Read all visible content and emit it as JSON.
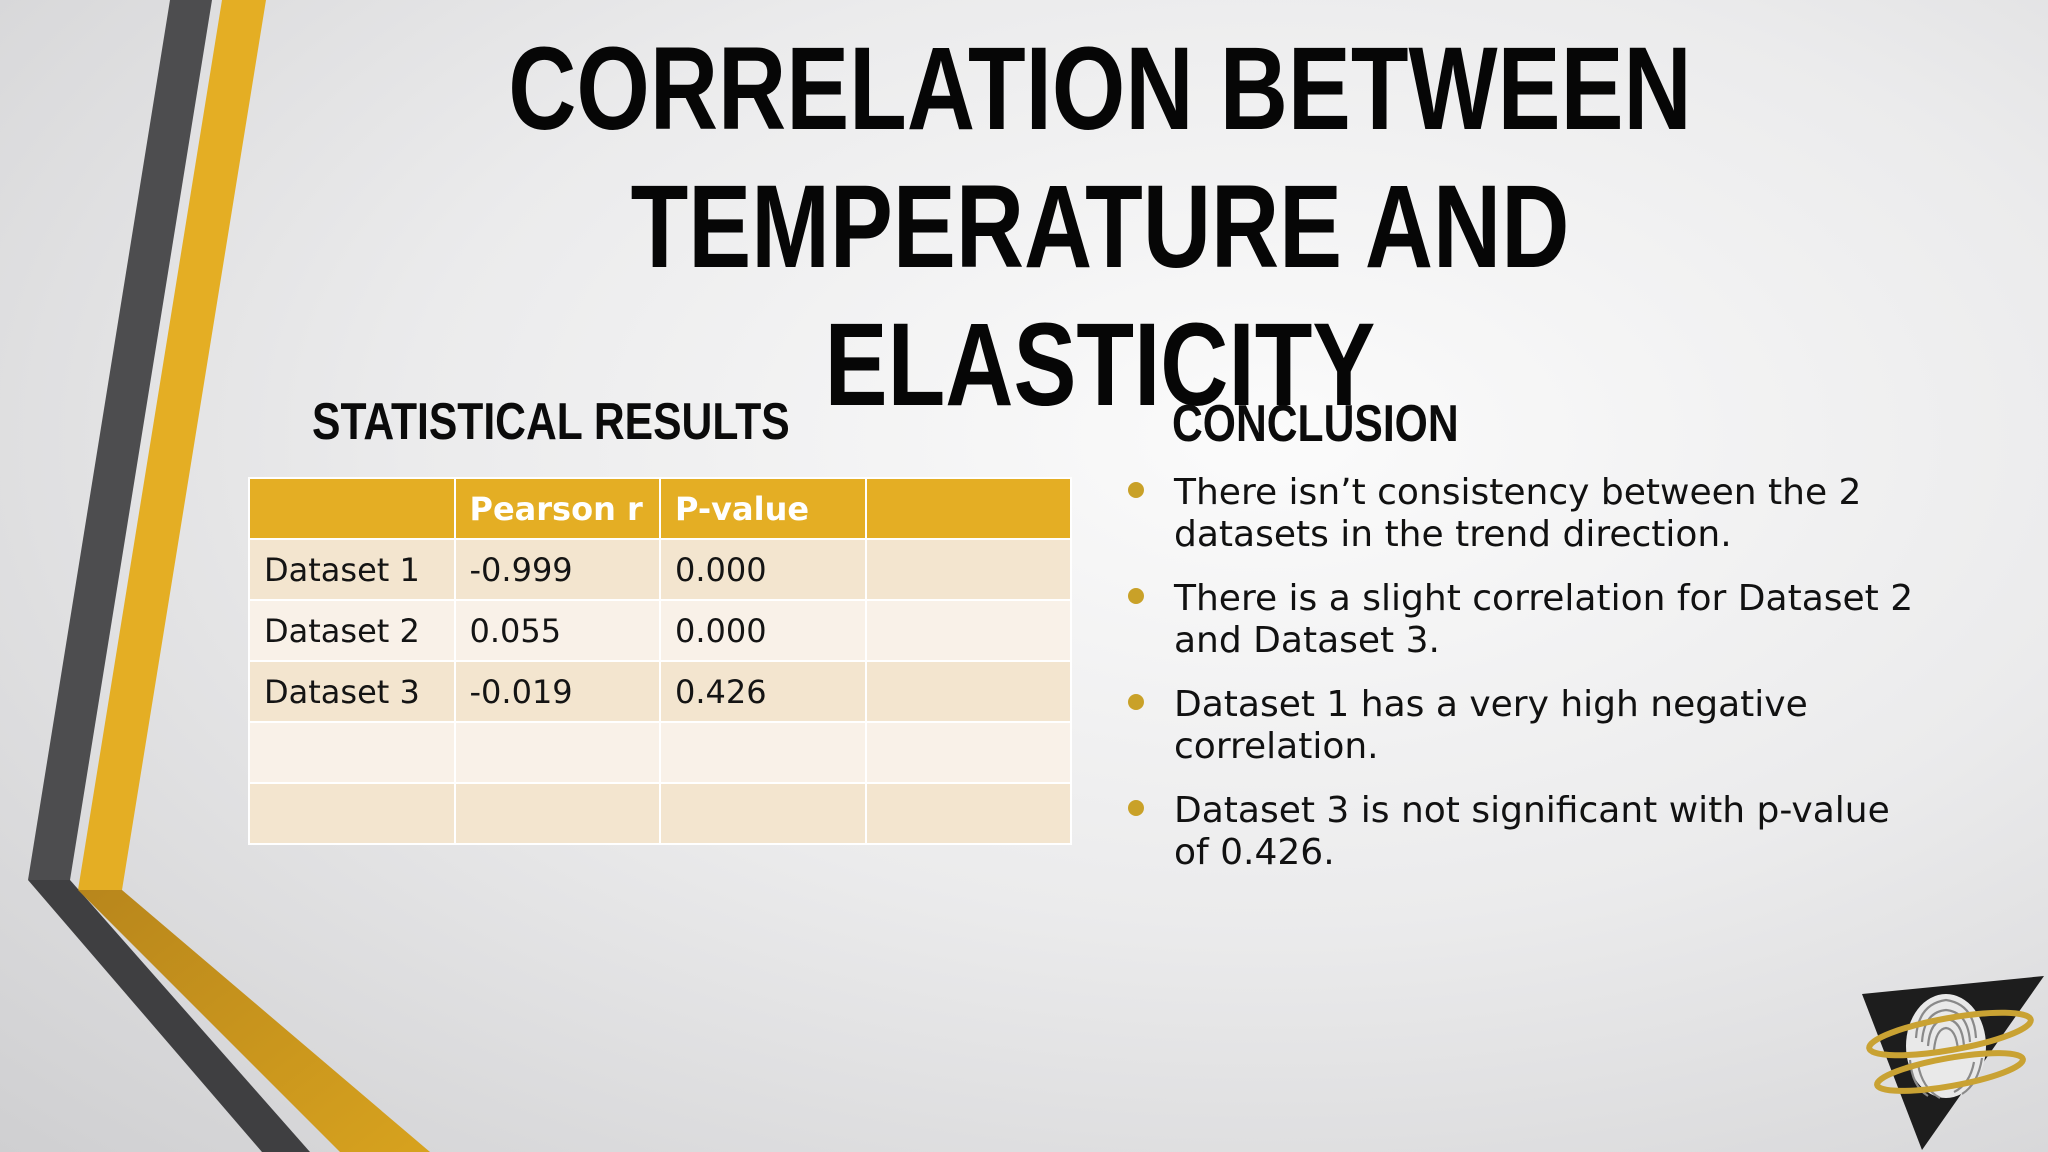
{
  "slide": {
    "title": "CORRELATION BETWEEN TEMPERATURE AND ELASTICITY",
    "accent_color": "#e4ae24",
    "dark_stripe_color": "#4d4d4f"
  },
  "statistics": {
    "heading": "STATISTICAL RESULTS",
    "columns": [
      "",
      "Pearson r",
      "P-value",
      ""
    ],
    "rows": [
      [
        "Dataset 1",
        "-0.999",
        "0.000",
        ""
      ],
      [
        "Dataset 2",
        "0.055",
        "0.000",
        ""
      ],
      [
        "Dataset 3",
        "-0.019",
        "0.426",
        ""
      ],
      [
        "",
        "",
        "",
        ""
      ],
      [
        "",
        "",
        "",
        ""
      ]
    ]
  },
  "conclusion": {
    "heading": "CONCLUSION",
    "bullets": [
      "There isn’t consistency between the 2 datasets in the trend direction.",
      "There is a slight correlation for Dataset 2 and Dataset 3.",
      "Dataset 1 has a very high negative correlation.",
      "Dataset 3 is not significant with p-value of 0.426."
    ]
  },
  "logo": {
    "icon": "fingerprint-triangle-logo-icon"
  }
}
